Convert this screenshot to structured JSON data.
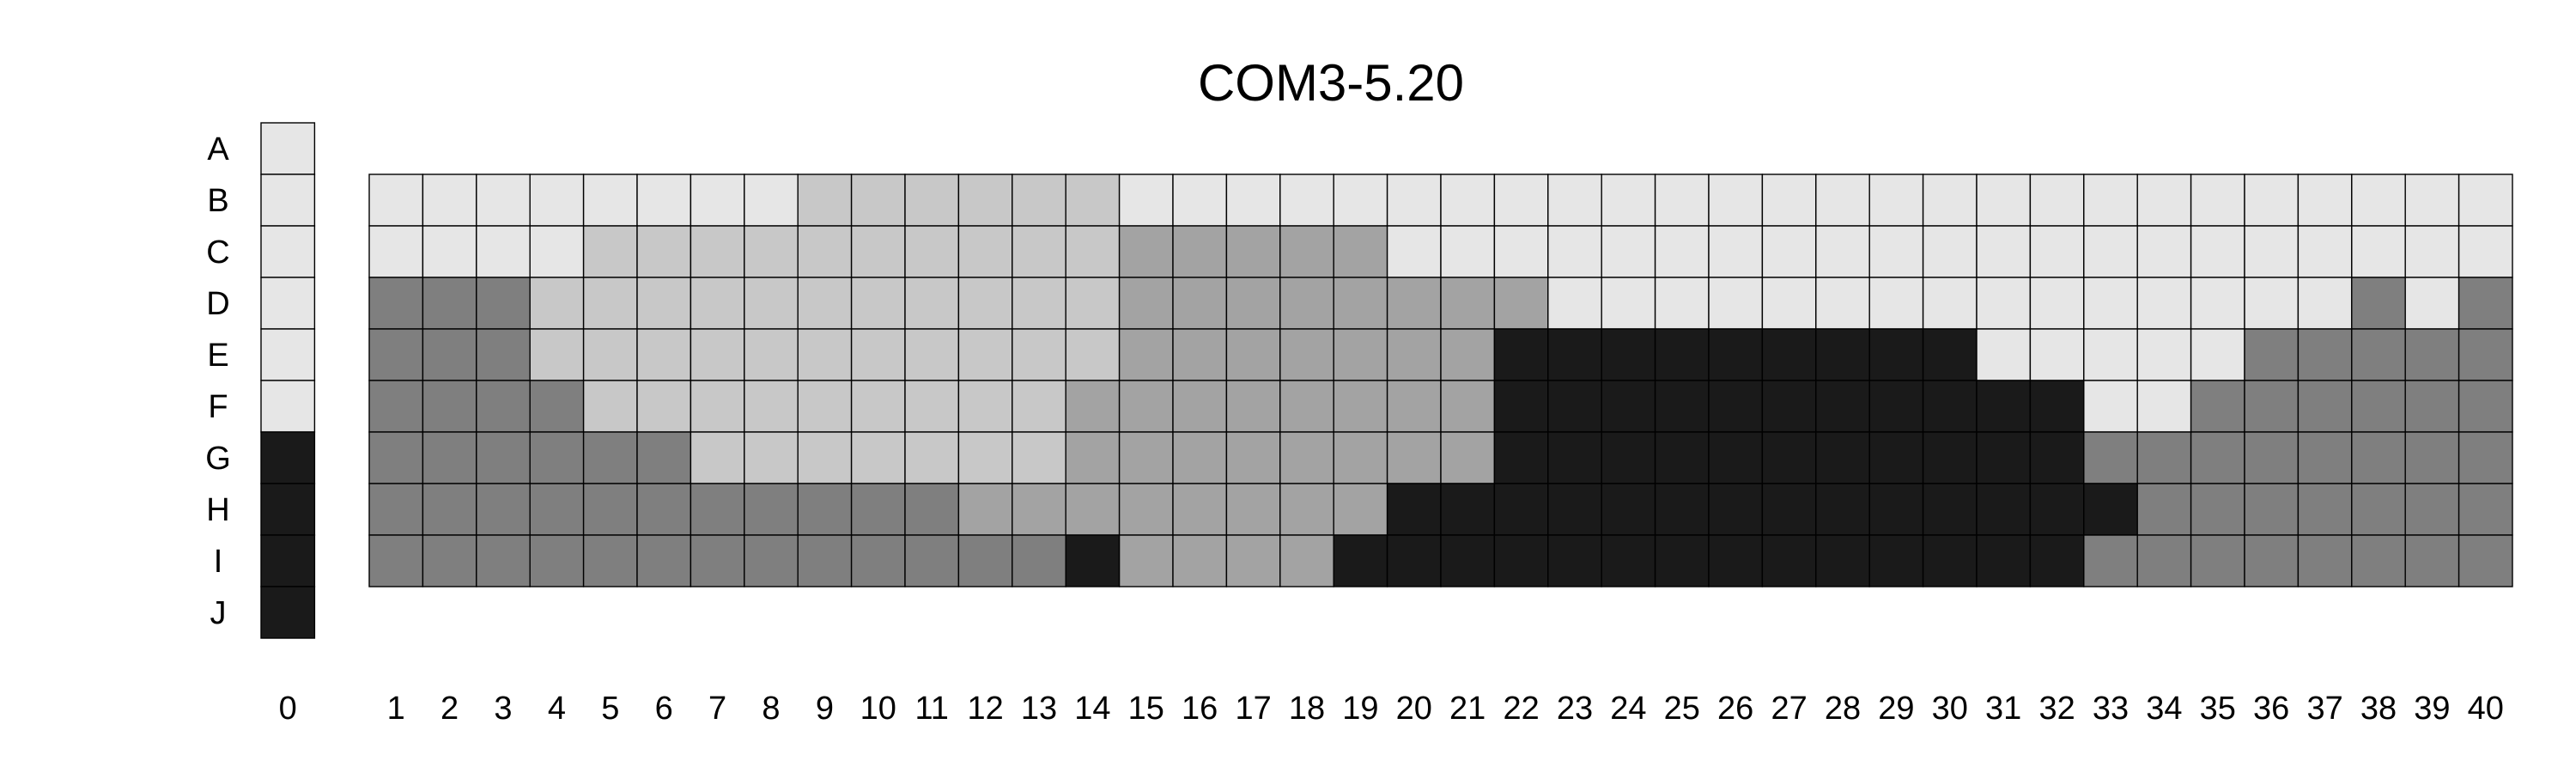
{
  "chart_data": {
    "type": "heatmap",
    "title": "COM3-5.20",
    "xlabel": "",
    "ylabel": "",
    "grid": true,
    "color_scale": {
      "A": "#e6e6e6",
      "B": "#c8c8c8",
      "C": "#a3a3a3",
      "D": "#7f7f7f",
      "E": "#1a1a1a"
    },
    "row_labels": [
      "A",
      "B",
      "C",
      "D",
      "E",
      "F",
      "G",
      "H",
      "I",
      "J"
    ],
    "reference_column": {
      "label": "0",
      "values": [
        "A",
        "A",
        "A",
        "A",
        "A",
        "A",
        "E",
        "E",
        "E",
        "E"
      ]
    },
    "column_labels": [
      "1",
      "2",
      "3",
      "4",
      "5",
      "6",
      "7",
      "8",
      "9",
      "10",
      "11",
      "12",
      "13",
      "14",
      "15",
      "16",
      "17",
      "18",
      "19",
      "20",
      "21",
      "22",
      "23",
      "24",
      "25",
      "26",
      "27",
      "28",
      "29",
      "30",
      "31",
      "32",
      "33",
      "34",
      "35",
      "36",
      "37",
      "38",
      "39",
      "40"
    ],
    "row_start": "B",
    "grid_values": [
      [
        "A",
        "A",
        "A",
        "A",
        "A",
        "A",
        "A",
        "A",
        "B",
        "B",
        "B",
        "B",
        "B",
        "B",
        "A",
        "A",
        "A",
        "A",
        "A",
        "A",
        "A",
        "A",
        "A",
        "A",
        "A",
        "A",
        "A",
        "A",
        "A",
        "A",
        "A",
        "A",
        "A",
        "A",
        "A",
        "A",
        "A",
        "A",
        "A",
        "A"
      ],
      [
        "A",
        "A",
        "A",
        "A",
        "B",
        "B",
        "B",
        "B",
        "B",
        "B",
        "B",
        "B",
        "B",
        "B",
        "C",
        "C",
        "C",
        "C",
        "C",
        "A",
        "A",
        "A",
        "A",
        "A",
        "A",
        "A",
        "A",
        "A",
        "A",
        "A",
        "A",
        "A",
        "A",
        "A",
        "A",
        "A",
        "A",
        "A",
        "A",
        "A"
      ],
      [
        "D",
        "D",
        "D",
        "B",
        "B",
        "B",
        "B",
        "B",
        "B",
        "B",
        "B",
        "B",
        "B",
        "B",
        "C",
        "C",
        "C",
        "C",
        "C",
        "C",
        "C",
        "C",
        "A",
        "A",
        "A",
        "A",
        "A",
        "A",
        "A",
        "A",
        "A",
        "A",
        "A",
        "A",
        "A",
        "A",
        "A",
        "D",
        "A",
        "D"
      ],
      [
        "D",
        "D",
        "D",
        "B",
        "B",
        "B",
        "B",
        "B",
        "B",
        "B",
        "B",
        "B",
        "B",
        "B",
        "C",
        "C",
        "C",
        "C",
        "C",
        "C",
        "C",
        "E",
        "E",
        "E",
        "E",
        "E",
        "E",
        "E",
        "E",
        "E",
        "A",
        "A",
        "A",
        "A",
        "A",
        "D",
        "D",
        "D",
        "D",
        "D"
      ],
      [
        "D",
        "D",
        "D",
        "D",
        "B",
        "B",
        "B",
        "B",
        "B",
        "B",
        "B",
        "B",
        "B",
        "C",
        "C",
        "C",
        "C",
        "C",
        "C",
        "C",
        "C",
        "E",
        "E",
        "E",
        "E",
        "E",
        "E",
        "E",
        "E",
        "E",
        "E",
        "E",
        "A",
        "A",
        "D",
        "D",
        "D",
        "D",
        "D",
        "D"
      ],
      [
        "D",
        "D",
        "D",
        "D",
        "D",
        "D",
        "B",
        "B",
        "B",
        "B",
        "B",
        "B",
        "B",
        "C",
        "C",
        "C",
        "C",
        "C",
        "C",
        "C",
        "C",
        "E",
        "E",
        "E",
        "E",
        "E",
        "E",
        "E",
        "E",
        "E",
        "E",
        "E",
        "D",
        "D",
        "D",
        "D",
        "D",
        "D",
        "D",
        "D"
      ],
      [
        "D",
        "D",
        "D",
        "D",
        "D",
        "D",
        "D",
        "D",
        "D",
        "D",
        "D",
        "C",
        "C",
        "C",
        "C",
        "C",
        "C",
        "C",
        "C",
        "E",
        "E",
        "E",
        "E",
        "E",
        "E",
        "E",
        "E",
        "E",
        "E",
        "E",
        "E",
        "E",
        "E",
        "D",
        "D",
        "D",
        "D",
        "D",
        "D",
        "D"
      ],
      [
        "D",
        "D",
        "D",
        "D",
        "D",
        "D",
        "D",
        "D",
        "D",
        "D",
        "D",
        "D",
        "D",
        "E",
        "C",
        "C",
        "C",
        "C",
        "E",
        "E",
        "E",
        "E",
        "E",
        "E",
        "E",
        "E",
        "E",
        "E",
        "E",
        "E",
        "E",
        "E",
        "D",
        "D",
        "D",
        "D",
        "D",
        "D",
        "D",
        "D"
      ]
    ]
  }
}
